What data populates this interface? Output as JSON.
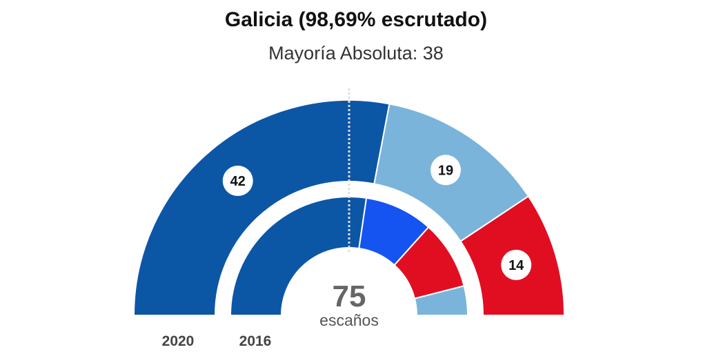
{
  "chart_data": {
    "type": "semicircle-parliament",
    "title": "Galicia (98,69% escrutado)",
    "subtitle": "Mayoría Absoluta: 38",
    "total_seats": 75,
    "total_label": "escaños",
    "majority": 38,
    "rings": [
      {
        "label": "2020",
        "segments": [
          {
            "seats": 42,
            "color": "#0c56a6",
            "show_label": true
          },
          {
            "seats": 19,
            "color": "#7ab4da",
            "show_label": true
          },
          {
            "seats": 14,
            "color": "#e10e22",
            "show_label": true
          }
        ]
      },
      {
        "label": "2016",
        "segments": [
          {
            "seats": 41,
            "color": "#0c56a6",
            "show_label": false
          },
          {
            "seats": 14,
            "color": "#1554f0",
            "show_label": false
          },
          {
            "seats": 14,
            "color": "#e10e22",
            "show_label": false
          },
          {
            "seats": 6,
            "color": "#7ab4da",
            "show_label": false
          }
        ]
      }
    ]
  }
}
